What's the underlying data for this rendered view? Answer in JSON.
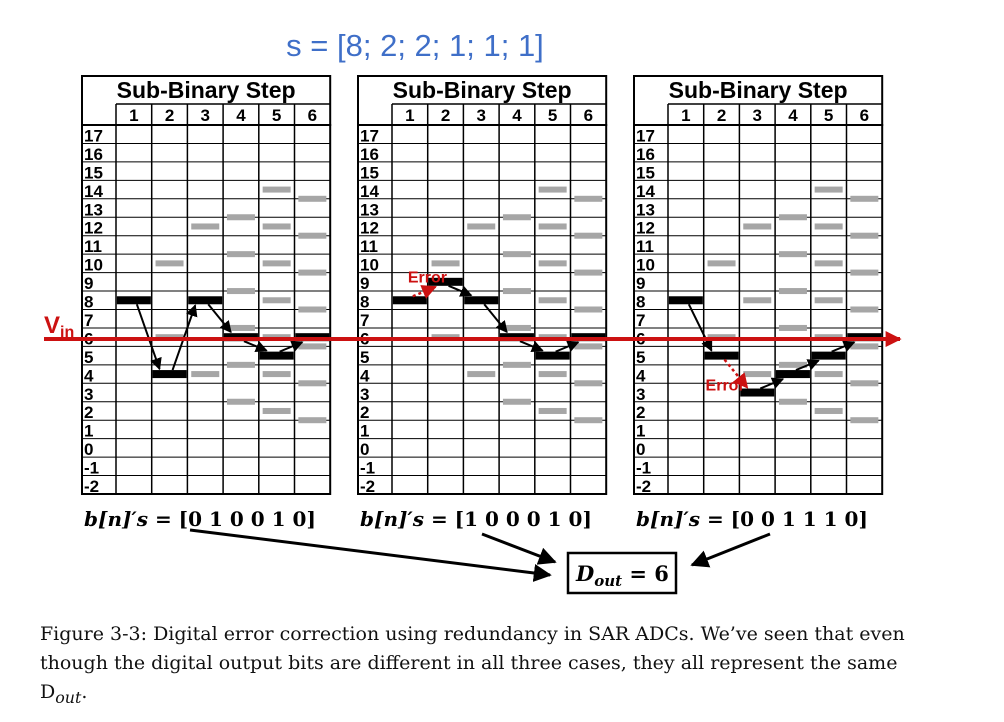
{
  "title": "s = [8; 2; 2; 1; 1; 1]",
  "grid": {
    "header": "Sub-Binary Step",
    "steps": [
      "1",
      "2",
      "3",
      "4",
      "5",
      "6"
    ],
    "rows": [
      "17",
      "16",
      "15",
      "14",
      "13",
      "12",
      "11",
      "10",
      "9",
      "8",
      "7",
      "6",
      "5",
      "4",
      "3",
      "2",
      "1",
      "0",
      "-1",
      "-2"
    ]
  },
  "vin_label": "V",
  "vin_sub": "in",
  "vin_level": 5.9,
  "panels": [
    {
      "bits_prefix": "b[n]′s = ",
      "bits": "[0 1 0 0 1 0]",
      "path": [
        8,
        4,
        8,
        6,
        5,
        6
      ],
      "error": null
    },
    {
      "bits_prefix": "b[n]′s = ",
      "bits": "[1 0 0 0 1 0]",
      "path": [
        8,
        9,
        8,
        6,
        5,
        6
      ],
      "error": {
        "label": "Error",
        "from_step": 1,
        "to_step": 2
      }
    },
    {
      "bits_prefix": "b[n]′s = ",
      "bits": "[0 0 1 1 1 0]",
      "path": [
        8,
        5,
        3,
        4,
        5,
        6
      ],
      "error": {
        "label": "Error",
        "from_step": 2,
        "to_step": 3
      }
    }
  ],
  "decision_levels": [
    [
      8
    ],
    [
      6,
      10
    ],
    [
      4,
      8,
      12
    ],
    [
      2.5,
      4.5,
      6.5,
      8.5,
      10.5,
      12.5
    ],
    [
      2,
      4,
      6,
      8,
      10,
      12,
      14
    ],
    [
      1.5,
      3.5,
      5.5,
      7.5,
      9.5,
      11.5,
      13.5
    ]
  ],
  "dout_label": "D",
  "dout_sub": "out",
  "dout_value": " = 6",
  "caption": "Figure 3-3: Digital error correction using redundancy in SAR ADCs. We’ve seen that even though the digital output bits are different in all three cases, they all represent the same D",
  "caption_sub": "out",
  "caption_end": ".",
  "colors": {
    "title": "#3f6fc8",
    "vin": "#cc1111",
    "error": "#cc1111",
    "grey": "#a6a6a6",
    "black": "#000000"
  }
}
